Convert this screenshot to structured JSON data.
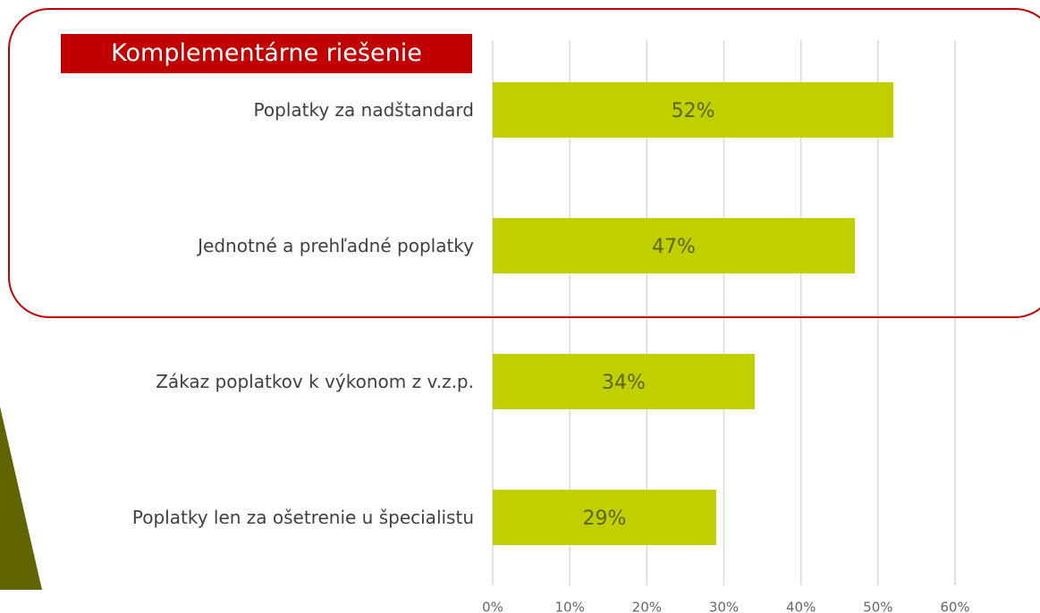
{
  "chart_data": {
    "type": "bar",
    "orientation": "horizontal",
    "title": "Komplementárne riešenie",
    "categories": [
      "Poplatky za nadštandard",
      "Jednotné a prehľadné poplatky",
      "Zákaz poplatkov k výkonom z v.z.p.",
      "Poplatky len za ošetrenie u špecialistu"
    ],
    "values": [
      52,
      47,
      34,
      29
    ],
    "value_labels": [
      "52%",
      "47%",
      "34%",
      "29%"
    ],
    "color": "#bfcf00",
    "xlim": [
      0,
      60
    ],
    "xticks": [
      {
        "value": 0,
        "label": "0%"
      },
      {
        "value": 10,
        "label": "10%"
      },
      {
        "value": 20,
        "label": "20%"
      },
      {
        "value": 30,
        "label": "30%"
      },
      {
        "value": 40,
        "label": "40%"
      },
      {
        "value": 50,
        "label": "50%"
      },
      {
        "value": 60,
        "label": "60%"
      }
    ],
    "grid": true
  }
}
